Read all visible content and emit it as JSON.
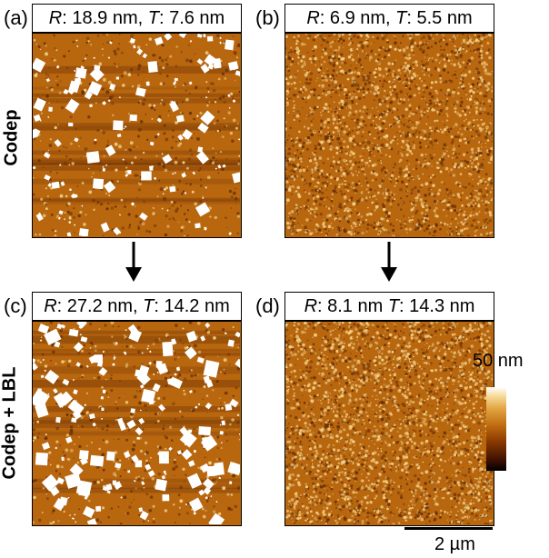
{
  "panels": [
    {
      "label": "(a)",
      "r_label": "R",
      "r_value": ": 18.9 nm, ",
      "t_label": "T",
      "t_value": ": 7.6 nm"
    },
    {
      "label": "(b)",
      "r_label": "R",
      "r_value": ": 6.9 nm, ",
      "t_label": "T",
      "t_value": ": 5.5 nm"
    },
    {
      "label": "(c)",
      "r_label": "R",
      "r_value": ": 27.2 nm, ",
      "t_label": "T",
      "t_value": ": 14.2 nm"
    },
    {
      "label": "(d)",
      "r_label": "R",
      "r_value": ": 8.1 nm ",
      "t_label": "T",
      "t_value": ": 14.3 nm"
    }
  ],
  "row_labels": {
    "top": "Codep",
    "bottom": "Codep + LBL"
  },
  "colorbar": {
    "max_label": "50 nm",
    "colors": [
      "#000000",
      "#8a3a00",
      "#c06e10",
      "#ffffff"
    ]
  },
  "scalebar": {
    "label": "2 µm"
  },
  "colors": {
    "afm_base": "#b8670f",
    "afm_dark": "#6b3005",
    "afm_light": "#f4d38a",
    "feature": "#ffffff"
  }
}
